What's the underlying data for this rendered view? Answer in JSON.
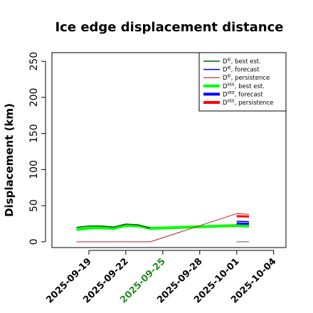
{
  "chart_data": {
    "type": "line",
    "title": "Ice edge displacement distance",
    "xlabel": "",
    "ylabel": "Displacement (km)",
    "x_ticks": [
      "2025-09-19",
      "2025-09-22",
      "2025-09-25",
      "2025-09-28",
      "2025-10-01",
      "2025-10-04"
    ],
    "x_tick_colors": [
      "#000000",
      "#000000",
      "#228B22",
      "#000000",
      "#000000",
      "#000000"
    ],
    "x_range": [
      "2025-09-16",
      "2025-10-05"
    ],
    "ylim": [
      -8,
      262
    ],
    "y_ticks": [
      0,
      50,
      100,
      150,
      200,
      250
    ],
    "grid": false,
    "legend_position": "top-right",
    "legend": [
      {
        "base": "D",
        "sup": "IE",
        "rest": ", best est.",
        "color": "#006400",
        "width": 1.5
      },
      {
        "base": "D",
        "sup": "IE",
        "rest": ", forecast",
        "color": "#0000cd",
        "width": 1.5
      },
      {
        "base": "D",
        "sup": "IE",
        "rest": ", persistence",
        "color": "#b22222",
        "width": 1.2
      },
      {
        "base": "D",
        "sup": "IIEE",
        "rest": ", best est.",
        "color": "#00ff00",
        "width": 4
      },
      {
        "base": "D",
        "sup": "IIEE",
        "rest": ", forecast",
        "color": "#0000ff",
        "width": 4
      },
      {
        "base": "D",
        "sup": "IIEE",
        "rest": ", persistence",
        "color": "#ff0000",
        "width": 4
      }
    ],
    "series": [
      {
        "key": "iiee_best",
        "color": "#00ff00",
        "width": 4,
        "x": [
          "2025-09-18",
          "2025-09-19",
          "2025-09-20",
          "2025-09-21",
          "2025-09-22",
          "2025-09-23",
          "2025-09-24",
          "2025-10-01",
          "2025-10-02"
        ],
        "y": [
          17,
          19,
          19.5,
          18.5,
          22.5,
          22,
          18.5,
          22.5,
          21.5
        ]
      },
      {
        "key": "ie_best",
        "color": "#006400",
        "width": 1.5,
        "x": [
          "2025-09-18",
          "2025-09-19",
          "2025-09-20",
          "2025-09-21",
          "2025-09-22",
          "2025-09-23",
          "2025-09-24"
        ],
        "y": [
          20,
          22,
          22,
          20.5,
          24.5,
          23.5,
          19
        ]
      },
      {
        "key": "ie_persistence",
        "color": "#b22222",
        "width": 1,
        "x": [
          "2025-09-18",
          "2025-09-24",
          "2025-10-01",
          "2025-10-02"
        ],
        "y": [
          0,
          0,
          39,
          38
        ]
      },
      {
        "key": "iiee_persistence",
        "color": "#ff0000",
        "width": 3,
        "x": [
          "2025-10-01",
          "2025-10-02"
        ],
        "y": [
          35.5,
          35
        ]
      },
      {
        "key": "ie_forecast",
        "color": "#0000cd",
        "width": 1.5,
        "x": [
          "2025-10-01",
          "2025-10-02"
        ],
        "y": [
          28.5,
          28
        ]
      },
      {
        "key": "iiee_forecast",
        "color": "#0000ff",
        "width": 3,
        "x": [
          "2025-10-01",
          "2025-10-02"
        ],
        "y": [
          25.5,
          25
        ]
      },
      {
        "key": "zero_baseline_late",
        "color": "#555555",
        "width": 1,
        "x": [
          "2025-10-01",
          "2025-10-02"
        ],
        "y": [
          0,
          0
        ]
      }
    ]
  }
}
